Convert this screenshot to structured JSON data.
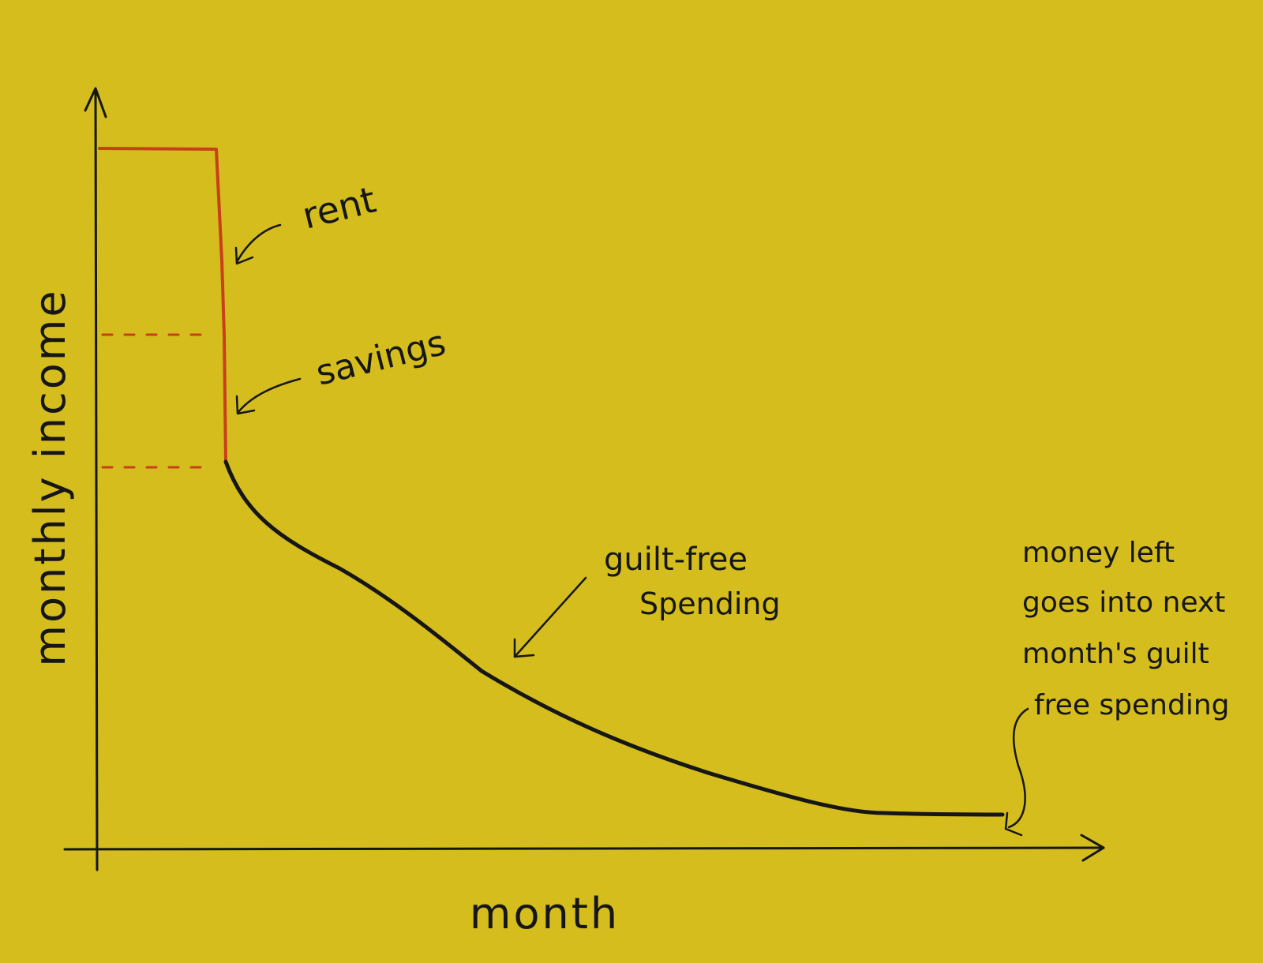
{
  "colors": {
    "background": "#d4bd1c",
    "ink": "#161616",
    "red": "#c8401a"
  },
  "chart_data": {
    "type": "line",
    "xlabel": "month",
    "ylabel": "monthly income",
    "grid": false,
    "segments": [
      {
        "name": "rent",
        "color": "#c8401a",
        "description_points": [
          [
            0,
            100
          ],
          [
            16,
            100
          ],
          [
            18,
            70
          ]
        ]
      },
      {
        "name": "savings",
        "color": "#c8401a",
        "description_points": [
          [
            18,
            70
          ],
          [
            18,
            52
          ]
        ]
      },
      {
        "name": "guilt-free spending",
        "color": "#161616"
      }
    ],
    "annotations": {
      "rent": "rent",
      "savings": "savings",
      "guilt_free_line1": "guilt-free",
      "guilt_free_line2": "Spending",
      "money_left_line1": "money left",
      "money_left_line2": "goes into next",
      "money_left_line3": "month's guilt",
      "money_left_line4": "free spending"
    }
  }
}
